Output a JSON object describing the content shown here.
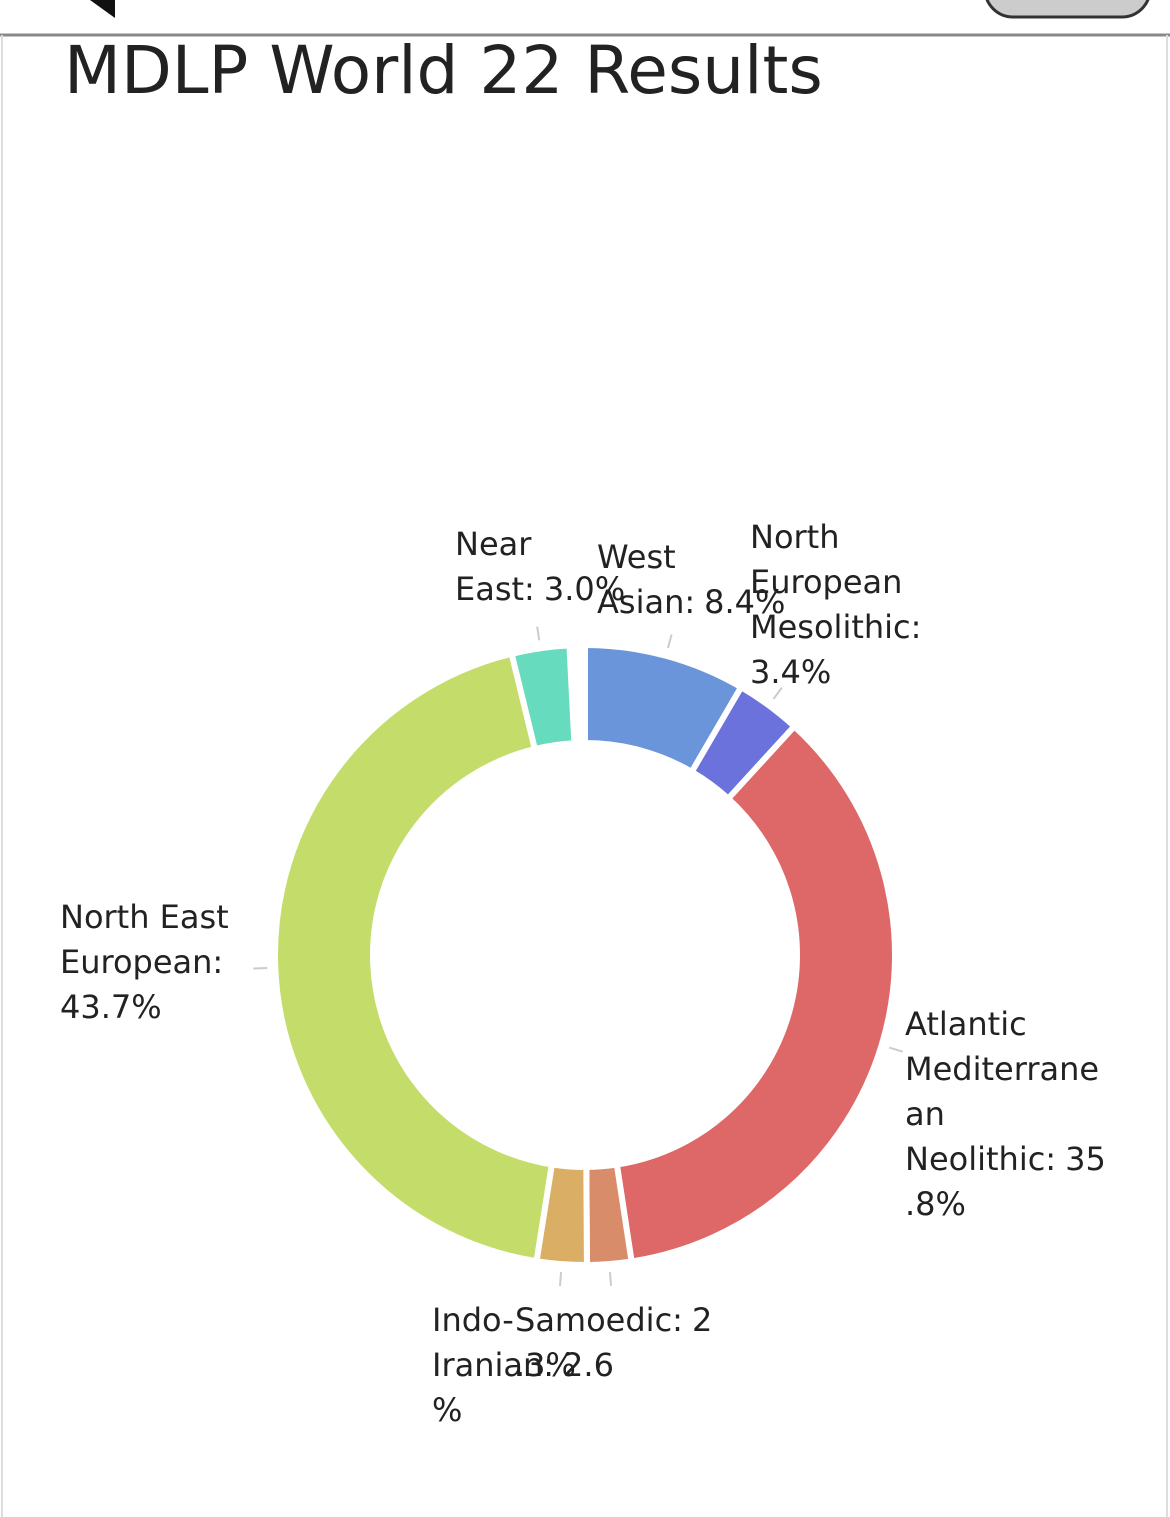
{
  "chart_data": {
    "type": "donut",
    "title": "MDLP World 22 Results",
    "categories": [
      "West Asian:",
      "North European Mesolithic:",
      "Atlantic Mediterranean Neolithic:",
      "Samoedic:",
      "Indo-Iranian:",
      "North East European:",
      "Near East:"
    ],
    "values": [
      8.4,
      3.4,
      35.8,
      2.3,
      2.6,
      43.7,
      3.0
    ],
    "value_labels": [
      "8.4%",
      "3.4%",
      "35.8%",
      "2.3%",
      "2.6%",
      "43.7%",
      "3.0%"
    ],
    "colors": [
      "#6a95db",
      "#6b72dc",
      "#de6868",
      "#d98c6a",
      "#dbae66",
      "#c4dc6a",
      "#66dbbd"
    ]
  }
}
